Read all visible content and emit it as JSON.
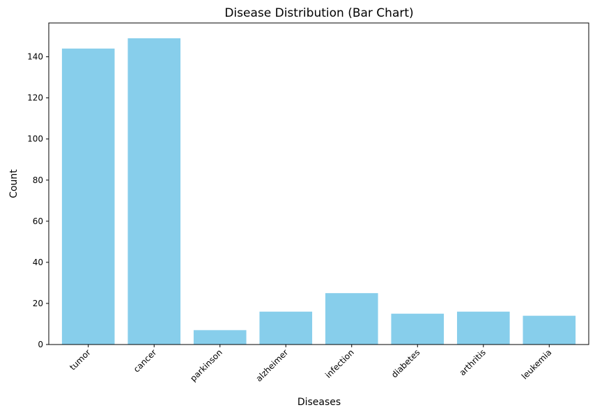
{
  "chart_data": {
    "type": "bar",
    "title": "Disease Distribution (Bar Chart)",
    "xlabel": "Diseases",
    "ylabel": "Count",
    "categories": [
      "tumor",
      "cancer",
      "parkinson",
      "alzheimer",
      "infection",
      "diabetes",
      "arthritis",
      "leukemia"
    ],
    "values": [
      144,
      149,
      7,
      16,
      25,
      15,
      16,
      14
    ],
    "ylim": [
      0,
      156.45
    ],
    "yticks": [
      0,
      20,
      40,
      60,
      80,
      100,
      120,
      140
    ],
    "x_tick_rotation_deg": 45,
    "bar_color": "#87ceeb",
    "grid": false,
    "legend": false
  }
}
